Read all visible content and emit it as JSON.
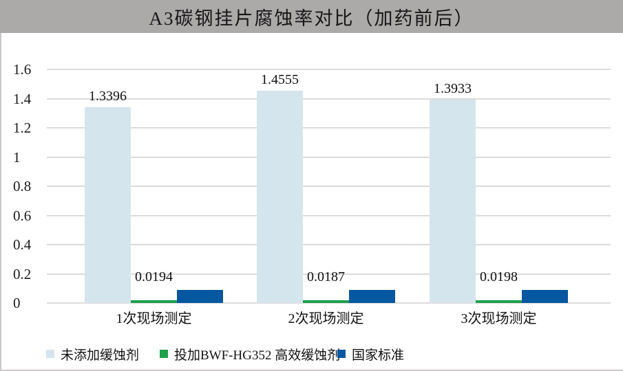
{
  "title": "A3碳钢挂片腐蚀率对比（加药前后）",
  "colors": {
    "title_band": "#ACA9A9",
    "grid": "#DBDBDB",
    "text": "#111111",
    "series_untreated": "#D5E5ED",
    "series_inhibitor": "#1FA04A",
    "series_standard": "#0557A0"
  },
  "chart_data": {
    "type": "bar",
    "title": "A3碳钢挂片腐蚀率对比（加药前后）",
    "categories": [
      "1次现场测定",
      "2次现场测定",
      "3次现场测定"
    ],
    "series": [
      {
        "name": "未添加缓蚀剂",
        "color": "#D5E5ED",
        "values": [
          1.3396,
          1.4555,
          1.3933
        ],
        "labels": [
          "1.3396",
          "1.4555",
          "1.3933"
        ]
      },
      {
        "name": "投加BWF-HG352 高效缓蚀剂",
        "color": "#1FA04A",
        "values": [
          0.0194,
          0.0187,
          0.0198
        ],
        "labels": [
          "0.0194",
          "0.0187",
          "0.0198"
        ]
      },
      {
        "name": "国家标准",
        "color": "#0557A0",
        "values": [
          0.09,
          0.09,
          0.09
        ],
        "labels": [
          "",
          "",
          ""
        ]
      }
    ],
    "xlabel": "",
    "ylabel": "",
    "ylim": [
      0,
      1.6
    ],
    "ytick_step": 0.2,
    "ytick_labels": [
      "0",
      "0.2",
      "0.4",
      "0.6",
      "0.8",
      "1",
      "1.2",
      "1.4",
      "1.6"
    ],
    "grid": true,
    "legend_position": "bottom"
  }
}
